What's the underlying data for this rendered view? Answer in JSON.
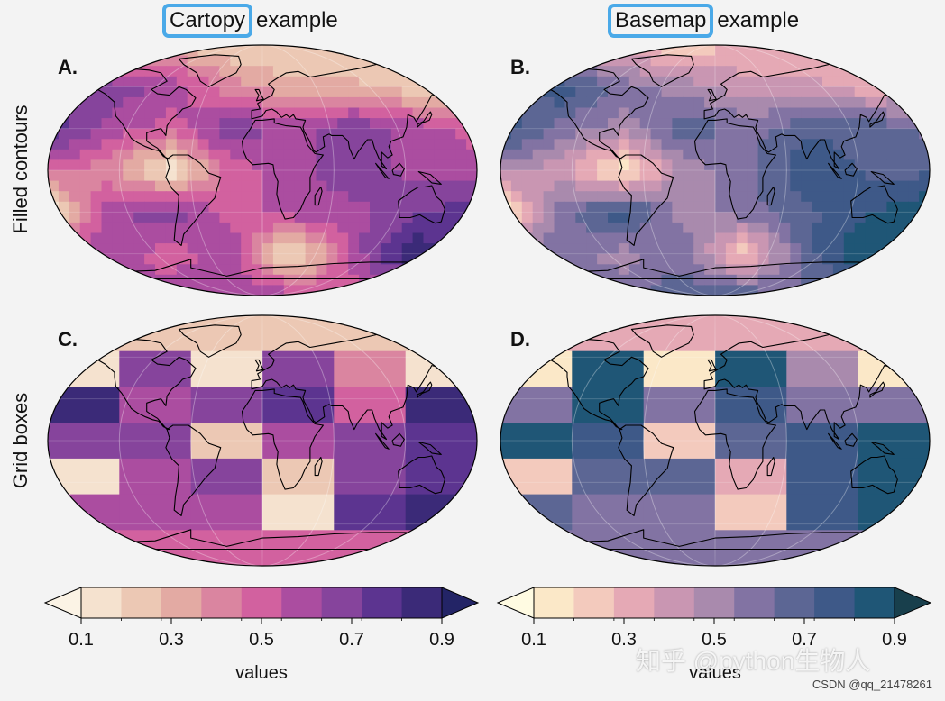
{
  "titles": {
    "left": {
      "highlight": "Cartopy",
      "rest": "example"
    },
    "right": {
      "highlight": "Basemap",
      "rest": "example"
    }
  },
  "row_labels": [
    "Filled contours",
    "Grid boxes"
  ],
  "panel_labels": [
    "A.",
    "B.",
    "C.",
    "D."
  ],
  "watermark": "知乎 @python生物人",
  "credit": "CSDN @qq_21478261",
  "colors": {
    "highlight_box": "#4aa9e8",
    "land_outline": "#000000",
    "background": "#f3f3f3"
  },
  "chart_data": [
    {
      "type": "heatmap",
      "panel": "A.",
      "title": "Cartopy example",
      "row": "Filled contours",
      "style": "filled-contours",
      "colormap": "magma-like",
      "levels": [
        0.1,
        0.2,
        0.3,
        0.4,
        0.5,
        0.6,
        0.7,
        0.8,
        0.9
      ],
      "grid_values": [
        [
          0.2,
          0.2,
          0.3,
          0.2,
          0.2,
          0.2,
          0.1,
          0.2
        ],
        [
          0.6,
          0.7,
          0.6,
          0.4,
          0.3,
          0.3,
          0.2,
          0.3
        ],
        [
          0.8,
          0.6,
          0.5,
          0.7,
          0.6,
          0.7,
          0.6,
          0.5
        ],
        [
          0.5,
          0.4,
          0.1,
          0.5,
          0.6,
          0.7,
          0.6,
          0.6
        ],
        [
          0.1,
          0.6,
          0.7,
          0.5,
          0.6,
          0.6,
          0.7,
          0.8
        ],
        [
          0.5,
          0.6,
          0.5,
          0.6,
          0.1,
          0.6,
          0.9,
          0.7
        ],
        [
          0.6,
          0.5,
          0.6,
          0.6,
          0.6,
          0.5,
          0.6,
          0.6
        ]
      ]
    },
    {
      "type": "heatmap",
      "panel": "B.",
      "title": "Basemap example",
      "row": "Filled contours",
      "style": "filled-contours",
      "colormap": "dense-like",
      "levels": [
        0.1,
        0.2,
        0.3,
        0.4,
        0.5,
        0.6,
        0.7,
        0.8,
        0.9
      ],
      "grid_values": [
        [
          0.3,
          0.3,
          0.3,
          0.2,
          0.3,
          0.3,
          0.3,
          0.3
        ],
        [
          0.6,
          0.8,
          0.6,
          0.5,
          0.4,
          0.4,
          0.3,
          0.4
        ],
        [
          0.8,
          0.6,
          0.5,
          0.7,
          0.6,
          0.7,
          0.7,
          0.6
        ],
        [
          0.5,
          0.4,
          0.1,
          0.5,
          0.6,
          0.8,
          0.7,
          0.7
        ],
        [
          0.1,
          0.6,
          0.8,
          0.5,
          0.6,
          0.7,
          0.8,
          0.9
        ],
        [
          0.5,
          0.6,
          0.5,
          0.6,
          0.2,
          0.7,
          0.9,
          0.7
        ],
        [
          0.7,
          0.6,
          0.6,
          0.7,
          0.7,
          0.6,
          0.7,
          0.7
        ]
      ]
    },
    {
      "type": "heatmap",
      "panel": "C.",
      "title": "Cartopy example",
      "row": "Grid boxes",
      "style": "grid-boxes",
      "colormap": "magma-like",
      "levels": [
        0.1,
        0.2,
        0.3,
        0.4,
        0.5,
        0.6,
        0.7,
        0.8,
        0.9
      ],
      "grid_values": [
        [
          0.2,
          0.2,
          0.2,
          0.2,
          0.2,
          0.2
        ],
        [
          0.1,
          0.7,
          0.1,
          0.7,
          0.4,
          0.1
        ],
        [
          0.9,
          0.6,
          0.7,
          0.8,
          0.5,
          0.9
        ],
        [
          0.7,
          0.7,
          0.2,
          0.6,
          0.7,
          0.8
        ],
        [
          0.1,
          0.6,
          0.7,
          0.2,
          0.7,
          0.8
        ],
        [
          0.6,
          0.6,
          0.6,
          0.1,
          0.8,
          0.9
        ],
        [
          0.5,
          0.5,
          0.5,
          0.5,
          0.5,
          0.5
        ]
      ]
    },
    {
      "type": "heatmap",
      "panel": "D.",
      "title": "Basemap example",
      "row": "Grid boxes",
      "style": "grid-boxes",
      "colormap": "dense-like",
      "levels": [
        0.1,
        0.2,
        0.3,
        0.4,
        0.5,
        0.6,
        0.7,
        0.8,
        0.9
      ],
      "grid_values": [
        [
          0.3,
          0.3,
          0.3,
          0.3,
          0.3,
          0.3
        ],
        [
          0.1,
          0.9,
          0.1,
          0.9,
          0.5,
          0.1
        ],
        [
          0.6,
          0.9,
          0.6,
          0.8,
          0.6,
          0.6
        ],
        [
          0.9,
          0.8,
          0.2,
          0.7,
          0.8,
          0.9
        ],
        [
          0.2,
          0.7,
          0.7,
          0.3,
          0.8,
          0.9
        ],
        [
          0.7,
          0.6,
          0.6,
          0.2,
          0.8,
          0.9
        ],
        [
          0.6,
          0.6,
          0.6,
          0.6,
          0.6,
          0.6
        ]
      ]
    },
    {
      "type": "colorbar",
      "side": "left",
      "label": "values",
      "ticks": [
        "0.1",
        "0.3",
        "0.5",
        "0.7",
        "0.9"
      ],
      "range": [
        0.1,
        0.9
      ],
      "extend": "both",
      "colors": [
        "#fbf3e5",
        "#f5e2cf",
        "#ecc8b4",
        "#e3aaa3",
        "#da85a0",
        "#d2619f",
        "#ab4da0",
        "#86449c",
        "#5c3490",
        "#3b2a78",
        "#232466"
      ]
    },
    {
      "type": "colorbar",
      "side": "right",
      "label": "values",
      "ticks": [
        "0.1",
        "0.3",
        "0.5",
        "0.7",
        "0.9"
      ],
      "range": [
        0.1,
        0.9
      ],
      "extend": "both",
      "colors": [
        "#fffbe2",
        "#fbe8c8",
        "#f3cabd",
        "#e5a9b5",
        "#c996b2",
        "#a98aad",
        "#8273a3",
        "#5c6694",
        "#3e5988",
        "#1f5676",
        "#183f4c"
      ]
    }
  ]
}
